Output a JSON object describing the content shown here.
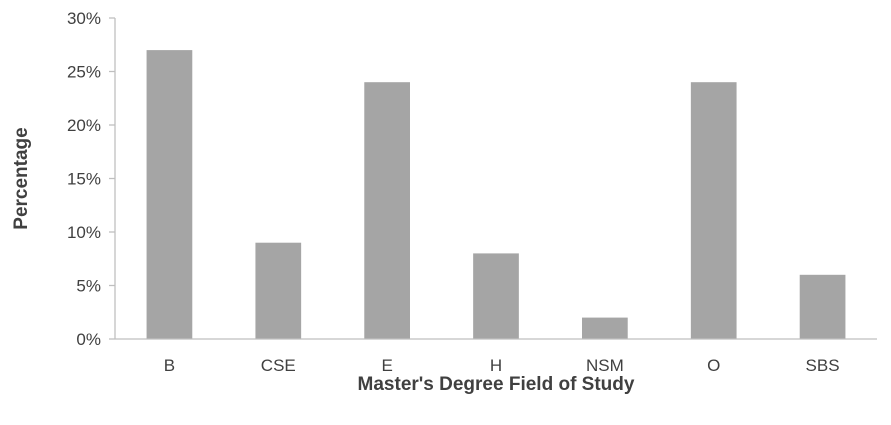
{
  "chart_data": {
    "type": "bar",
    "categories": [
      "B",
      "CSE",
      "E",
      "H",
      "NSM",
      "O",
      "SBS"
    ],
    "values": [
      27,
      9,
      24,
      8,
      2,
      24,
      6
    ],
    "unit": "%",
    "xlabel": "Master's Degree Field of Study",
    "ylabel": "Percentage",
    "ylim": [
      0,
      30
    ],
    "yticks": [
      0,
      5,
      10,
      15,
      20,
      25,
      30
    ],
    "ytick_labels": [
      "0%",
      "5%",
      "10%",
      "15%",
      "20%",
      "25%",
      "30%"
    ],
    "grid": false,
    "legend": "none",
    "colors": {
      "bar": "#a5a5a5",
      "axis": "#bfbfbf",
      "text": "#404040"
    }
  }
}
